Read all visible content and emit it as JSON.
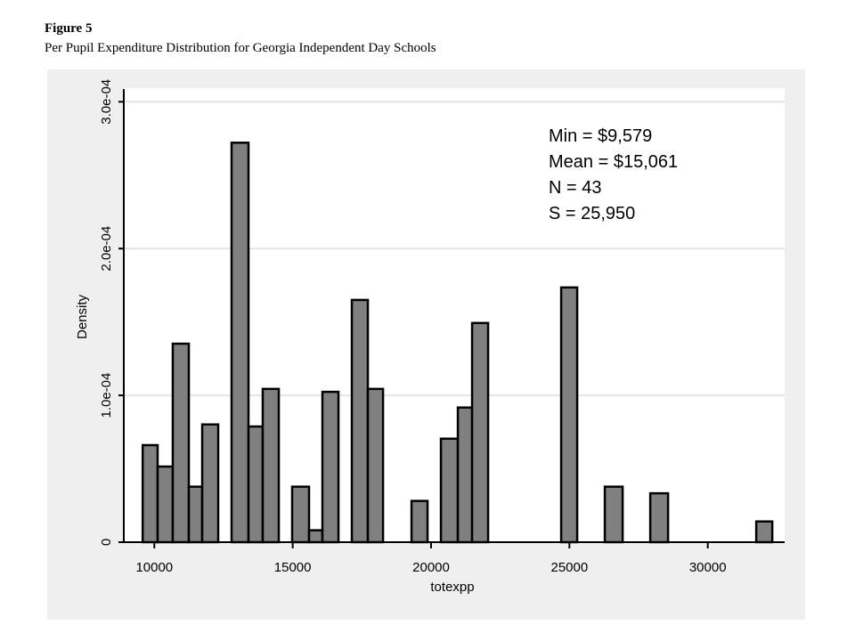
{
  "figure_label": "Figure 5",
  "figure_title": "Per Pupil Expenditure Distribution for Georgia Independent Day Schools",
  "chart_data": {
    "type": "bar",
    "subtype": "histogram",
    "xlabel": "totexpp",
    "ylabel": "Density",
    "xlim": [
      9000,
      32800
    ],
    "ylim": [
      0,
      0.0003
    ],
    "x_ticks": [
      10000,
      15000,
      20000,
      25000,
      30000
    ],
    "x_tick_labels": [
      "10000",
      "15000",
      "20000",
      "25000",
      "30000"
    ],
    "y_ticks": [
      0,
      0.0001,
      0.0002,
      0.0003
    ],
    "y_tick_labels": [
      "0",
      "1.0e-04",
      "2.0e-04",
      "3.0e-04"
    ],
    "grid": "horizontal",
    "bar_color": "#808080",
    "bars": [
      {
        "x_start": 9579,
        "x_end": 10119,
        "density": 6.61e-05
      },
      {
        "x_start": 10119,
        "x_end": 10666,
        "density": 5.15e-05
      },
      {
        "x_start": 10666,
        "x_end": 11246,
        "density": 0.0001352
      },
      {
        "x_start": 11246,
        "x_end": 11729,
        "density": 3.78e-05
      },
      {
        "x_start": 11729,
        "x_end": 12308,
        "density": 8.02e-05
      },
      {
        "x_start": 12791,
        "x_end": 13402,
        "density": 0.0002721
      },
      {
        "x_start": 13402,
        "x_end": 13917,
        "density": 7.88e-05
      },
      {
        "x_start": 13917,
        "x_end": 14497,
        "density": 0.0001044
      },
      {
        "x_start": 14980,
        "x_end": 15591,
        "density": 3.78e-05
      },
      {
        "x_start": 15591,
        "x_end": 16074,
        "density": 8.1e-06
      },
      {
        "x_start": 16074,
        "x_end": 16654,
        "density": 0.0001024
      },
      {
        "x_start": 17137,
        "x_end": 17716,
        "density": 0.000165
      },
      {
        "x_start": 17716,
        "x_end": 18264,
        "density": 0.0001044
      },
      {
        "x_start": 19294,
        "x_end": 19873,
        "density": 2.81e-05
      },
      {
        "x_start": 20356,
        "x_end": 20968,
        "density": 7.05e-05
      },
      {
        "x_start": 20968,
        "x_end": 21483,
        "density": 9.17e-05
      },
      {
        "x_start": 21483,
        "x_end": 22062,
        "density": 0.0001493
      },
      {
        "x_start": 24702,
        "x_end": 25281,
        "density": 0.0001735
      },
      {
        "x_start": 26279,
        "x_end": 26923,
        "density": 3.78e-05
      },
      {
        "x_start": 27921,
        "x_end": 28565,
        "density": 3.33e-05
      },
      {
        "x_start": 31752,
        "x_end": 32331,
        "density": 1.41e-05
      }
    ],
    "annotations": [
      "Min = $9,579",
      "Mean = $15,061",
      "N = 43",
      "S = 25,950"
    ]
  }
}
